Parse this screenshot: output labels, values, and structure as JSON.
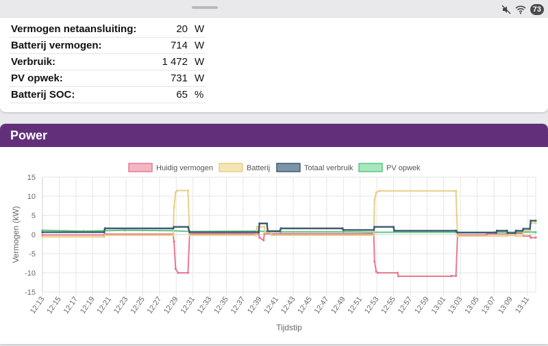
{
  "statusbar": {
    "battery": "73",
    "icons": [
      "mute-icon",
      "wifi-icon"
    ]
  },
  "summary": {
    "rows": [
      {
        "label": "Vermogen netaansluiting:",
        "value": "20",
        "unit": "W"
      },
      {
        "label": "Batterij vermogen:",
        "value": "714",
        "unit": "W"
      },
      {
        "label": "Verbruik:",
        "value": "1 472",
        "unit": "W"
      },
      {
        "label": "PV opwek:",
        "value": "731",
        "unit": "W"
      },
      {
        "label": "Batterij SOC:",
        "value": "65",
        "unit": "%"
      }
    ]
  },
  "power_card": {
    "title": "Power"
  },
  "chart_data": {
    "type": "line",
    "xlabel": "Tijdstip",
    "ylabel": "Vermogen (kW)",
    "ylim": [
      -15,
      15
    ],
    "yticks": [
      -15,
      -10,
      -5,
      0,
      5,
      10,
      15
    ],
    "xlim": [
      0,
      60
    ],
    "categories": [
      "12:13",
      "12:15",
      "12:17",
      "12:19",
      "12:21",
      "12:23",
      "12:25",
      "12:27",
      "12:29",
      "12:31",
      "12:33",
      "12:35",
      "12:37",
      "12:39",
      "12:41",
      "12:43",
      "12:45",
      "12:47",
      "12:49",
      "12:51",
      "12:53",
      "12:55",
      "12:57",
      "12:59",
      "13:01",
      "13:03",
      "13:05",
      "13:07",
      "13:09",
      "13:11"
    ],
    "legend_position": "top",
    "series": [
      {
        "name": "Huidig vermogen",
        "color": "#e8788f",
        "fill": "#f2b6c3",
        "points": [
          [
            0,
            -0.1
          ],
          [
            7.5,
            -0.1
          ],
          [
            7.6,
            0.1
          ],
          [
            15.9,
            0.1
          ],
          [
            16,
            -1.8
          ],
          [
            16.2,
            -9
          ],
          [
            16.5,
            -10
          ],
          [
            17.7,
            -10
          ],
          [
            17.9,
            0.2
          ],
          [
            26.3,
            0.2
          ],
          [
            26.4,
            -0.8
          ],
          [
            26.9,
            -1.5
          ],
          [
            27,
            0.2
          ],
          [
            40.3,
            0.2
          ],
          [
            40.4,
            -7
          ],
          [
            40.6,
            -9.7
          ],
          [
            40.8,
            -10
          ],
          [
            43.2,
            -10
          ],
          [
            43.3,
            -10.9
          ],
          [
            49.7,
            -10.9
          ],
          [
            49.8,
            -10.8
          ],
          [
            50.3,
            -10.8
          ],
          [
            50.5,
            -0.1
          ],
          [
            54,
            -0.1
          ],
          [
            54.1,
            0.1
          ],
          [
            56.5,
            0.1
          ],
          [
            56.6,
            -0.1
          ],
          [
            57.5,
            -0.1
          ],
          [
            57.6,
            0.3
          ],
          [
            58.4,
            0.3
          ],
          [
            58.5,
            -0.4
          ],
          [
            59.3,
            -0.4
          ],
          [
            59.4,
            -0.8
          ],
          [
            60,
            -0.8
          ]
        ]
      },
      {
        "name": "Batterij",
        "color": "#e8cf85",
        "fill": "#f5e4b4",
        "points": [
          [
            0,
            -0.6
          ],
          [
            7.5,
            -0.6
          ],
          [
            7.6,
            -0.2
          ],
          [
            15.9,
            -0.2
          ],
          [
            16,
            7
          ],
          [
            16.2,
            11
          ],
          [
            16.4,
            11.5
          ],
          [
            17.7,
            11.5
          ],
          [
            17.9,
            -0.2
          ],
          [
            26,
            -0.2
          ],
          [
            26.1,
            2
          ],
          [
            27,
            2
          ],
          [
            27.1,
            0.5
          ],
          [
            27.8,
            0.5
          ],
          [
            27.9,
            -0.2
          ],
          [
            40.3,
            -0.2
          ],
          [
            40.4,
            9
          ],
          [
            40.6,
            11
          ],
          [
            41,
            11.4
          ],
          [
            50.3,
            11.4
          ],
          [
            50.4,
            5
          ],
          [
            50.5,
            -0.4
          ],
          [
            56.5,
            -0.4
          ],
          [
            56.6,
            0
          ],
          [
            57.5,
            0
          ],
          [
            57.6,
            -0.4
          ],
          [
            58.4,
            -0.4
          ],
          [
            58.5,
            1
          ],
          [
            59.3,
            1
          ],
          [
            59.4,
            3
          ],
          [
            60,
            3
          ]
        ]
      },
      {
        "name": "Totaal verbruik",
        "color": "#3e5a73",
        "fill": "#7d94a8",
        "points": [
          [
            0,
            0.6
          ],
          [
            7.5,
            0.6
          ],
          [
            7.6,
            1.6
          ],
          [
            15.9,
            1.6
          ],
          [
            16,
            2
          ],
          [
            17.7,
            2
          ],
          [
            17.9,
            0.6
          ],
          [
            26.3,
            0.6
          ],
          [
            26.4,
            2.9
          ],
          [
            27.3,
            2.9
          ],
          [
            27.4,
            0.9
          ],
          [
            28.9,
            0.9
          ],
          [
            29,
            1.6
          ],
          [
            36.5,
            1.6
          ],
          [
            36.6,
            1.2
          ],
          [
            40.3,
            1.2
          ],
          [
            40.4,
            2
          ],
          [
            42.7,
            2
          ],
          [
            42.8,
            1
          ],
          [
            50.3,
            1
          ],
          [
            50.5,
            0.5
          ],
          [
            55.2,
            0.5
          ],
          [
            55.3,
            1
          ],
          [
            56.5,
            1
          ],
          [
            56.6,
            0.4
          ],
          [
            57.5,
            0.4
          ],
          [
            57.6,
            1
          ],
          [
            58.4,
            1
          ],
          [
            58.5,
            1.5
          ],
          [
            59.3,
            1.5
          ],
          [
            59.4,
            3.6
          ],
          [
            60,
            3.6
          ]
        ]
      },
      {
        "name": "PV opwek",
        "color": "#5ac782",
        "fill": "#a8e6bd",
        "points": [
          [
            0,
            1.1
          ],
          [
            5,
            0.9
          ],
          [
            10,
            1.1
          ],
          [
            15.9,
            1.0
          ],
          [
            17.9,
            0.8
          ],
          [
            26,
            0.9
          ],
          [
            29,
            0.7
          ],
          [
            36.6,
            0.7
          ],
          [
            40.3,
            0.6
          ],
          [
            50.3,
            0.6
          ],
          [
            55,
            0.6
          ],
          [
            58.5,
            0.6
          ],
          [
            59.3,
            0.7
          ],
          [
            60,
            0.6
          ]
        ]
      }
    ]
  }
}
